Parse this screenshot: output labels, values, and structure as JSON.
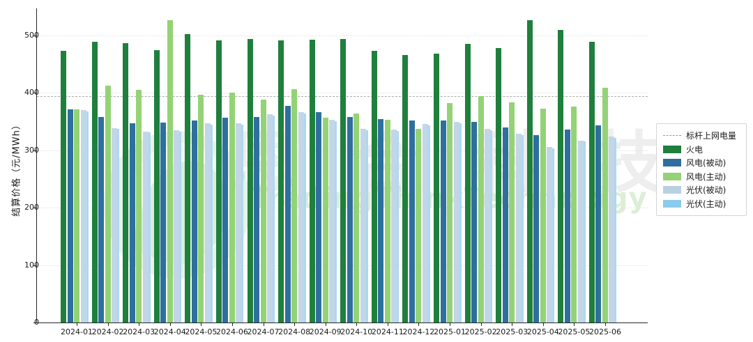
{
  "chart_data": {
    "type": "bar",
    "title": "",
    "ylabel": "结算价格（元/MWh）",
    "xlabel": "",
    "ylim": [
      0,
      545
    ],
    "yticks": [
      0,
      100,
      200,
      300,
      400,
      500
    ],
    "grid": "dotted-horizontal",
    "legend_position": "right-outside",
    "categories": [
      "2024-01",
      "2024-02",
      "2024-03",
      "2024-04",
      "2024-05",
      "2024-06",
      "2024-07",
      "2024-08",
      "2024-09",
      "2024-10",
      "2024-11",
      "2024-12",
      "2025-01",
      "2025-02",
      "2025-03",
      "2025-04",
      "2025-05",
      "2025-06"
    ],
    "series": [
      {
        "name": "火电",
        "color": "#1f7f3c",
        "values": [
          473,
          489,
          487,
          475,
          503,
          491,
          494,
          492,
          493,
          494,
          473,
          466,
          468,
          485,
          478,
          527,
          510,
          489
        ]
      },
      {
        "name": "风电(被动)",
        "color": "#2e6f9e",
        "values": [
          371,
          358,
          347,
          348,
          352,
          357,
          358,
          378,
          366,
          358,
          355,
          352,
          352,
          350,
          340,
          327,
          336,
          344
        ]
      },
      {
        "name": "风电(主动)",
        "color": "#94d276",
        "values": [
          371,
          413,
          405,
          527,
          397,
          400,
          388,
          407,
          357,
          364,
          353,
          337,
          382,
          395,
          383,
          373,
          376,
          409
        ]
      },
      {
        "name": "光伏(被动)",
        "color": "#c2d6e8",
        "values": [
          370,
          339,
          333,
          335,
          347,
          347,
          363,
          366,
          353,
          337,
          336,
          346,
          349,
          337,
          329,
          306,
          317,
          324
        ]
      },
      {
        "name": "光伏(主动)",
        "color": "#aed8f0",
        "values": [
          368,
          337,
          331,
          333,
          345,
          345,
          361,
          364,
          351,
          335,
          334,
          344,
          347,
          335,
          327,
          304,
          315,
          322
        ]
      }
    ],
    "benchmark_line": {
      "label": "标杆上网电量",
      "value": 395,
      "style": "dashed",
      "color": "#a9a9a9"
    }
  },
  "legend": {
    "items": [
      {
        "label": "标杆上网电量",
        "swatch": "dashed-line",
        "color": "#999999"
      },
      {
        "label": "火电",
        "swatch": "rect",
        "color": "#1f7f3c"
      },
      {
        "label": "风电(被动)",
        "swatch": "rect",
        "color": "#2e6f9e"
      },
      {
        "label": "风电(主动)",
        "swatch": "rect",
        "color": "#94d276"
      },
      {
        "label": "光伏(被动)",
        "swatch": "rect",
        "color": "#b9d0e2"
      },
      {
        "label": "光伏(主动)",
        "swatch": "rect",
        "color": "#8ccbeb"
      }
    ]
  },
  "watermark": {
    "chars": [
      "恩",
      "合",
      "科",
      "技"
    ],
    "text_en": "TradingThinkTechnology"
  }
}
